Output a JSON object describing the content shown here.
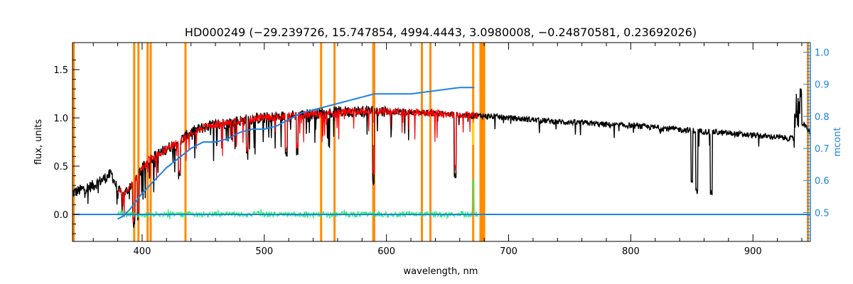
{
  "chart_data": {
    "type": "line",
    "title": "HD000249    (−29.239726, 15.747854, 4994.4443, 3.0980008, −0.24870581, 0.23692026)",
    "xlabel": "wavelength, nm",
    "ylabel": "flux, units",
    "y2label": "mcont",
    "xlim": [
      343,
      947
    ],
    "ylim": [
      -0.28,
      1.78
    ],
    "y2lim": [
      0.41,
      1.03
    ],
    "xticks": [
      400,
      500,
      600,
      700,
      800,
      900
    ],
    "yticks": [
      0.0,
      0.5,
      1.0,
      1.5
    ],
    "y2ticks": [
      0.5,
      0.6,
      0.7,
      0.8,
      0.9,
      1.0
    ],
    "colors": {
      "observed": "#000000",
      "model": "#ff0000",
      "residual": "#22ee66",
      "continuum": "#1e82e6",
      "mask": "#ff8c00",
      "flag": "#ffff00"
    },
    "mask_lines_nm": [
      344,
      393.5,
      397,
      404.5,
      407,
      435.5,
      546.5,
      557.5,
      589.2,
      590,
      629,
      636,
      671,
      677,
      678,
      679,
      680,
      945
    ],
    "series": [
      {
        "type": "observed_flux_envelope",
        "x": [
          343,
          360,
          375,
          380,
          385,
          395,
          405,
          420,
          430,
          440,
          450,
          460,
          470,
          480,
          490,
          500,
          510,
          520,
          530,
          540,
          550,
          560,
          580,
          600,
          620,
          640,
          660,
          680,
          700,
          720,
          740,
          760,
          780,
          800,
          820,
          840,
          860,
          880,
          900,
          920,
          935,
          940,
          947
        ],
        "values": [
          0.22,
          0.3,
          0.42,
          0.25,
          0.2,
          0.38,
          0.56,
          0.68,
          0.75,
          0.85,
          0.9,
          0.93,
          0.95,
          0.97,
          0.99,
          1.0,
          1.01,
          1.02,
          1.03,
          1.04,
          1.05,
          1.06,
          1.07,
          1.07,
          1.06,
          1.05,
          1.03,
          1.02,
          1.0,
          0.98,
          0.96,
          0.95,
          0.93,
          0.92,
          0.9,
          0.88,
          0.86,
          0.84,
          0.82,
          0.8,
          0.78,
          0.95,
          0.85
        ]
      },
      {
        "type": "model_flux",
        "x": [
          380,
          385,
          395,
          405,
          420,
          430,
          440,
          450,
          460,
          470,
          480,
          490,
          500,
          510,
          520,
          530,
          540,
          550,
          560,
          580,
          600,
          620,
          640,
          660,
          675
        ],
        "values": [
          0.25,
          0.2,
          0.38,
          0.56,
          0.68,
          0.75,
          0.85,
          0.9,
          0.93,
          0.95,
          0.97,
          0.99,
          1.0,
          1.01,
          1.02,
          1.03,
          1.04,
          1.05,
          1.06,
          1.07,
          1.07,
          1.06,
          1.05,
          1.03,
          1.02
        ]
      },
      {
        "type": "residual",
        "x": [
          380,
          675
        ],
        "values": [
          0.0,
          0.0
        ]
      },
      {
        "type": "continuum_mcont",
        "x": [
          380,
          385,
          390,
          400,
          410,
          420,
          430,
          440,
          450,
          460,
          470,
          480,
          490,
          500,
          510,
          520,
          530,
          540,
          550,
          560,
          570,
          580,
          590,
          600,
          620,
          640,
          660,
          672
        ],
        "values": [
          0.48,
          0.49,
          0.51,
          0.56,
          0.6,
          0.64,
          0.67,
          0.7,
          0.72,
          0.72,
          0.73,
          0.75,
          0.76,
          0.76,
          0.77,
          0.79,
          0.81,
          0.82,
          0.83,
          0.84,
          0.85,
          0.86,
          0.87,
          0.87,
          0.87,
          0.88,
          0.89,
          0.89
        ]
      }
    ]
  }
}
